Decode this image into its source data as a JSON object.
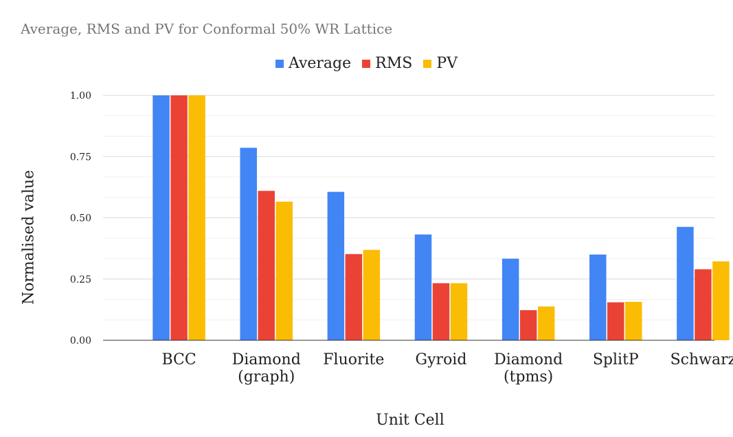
{
  "chart_data": {
    "type": "bar",
    "title": "Average, RMS and PV for Conformal 50% WR Lattice",
    "xlabel": "Unit Cell",
    "ylabel": "Normalised value",
    "categories": [
      [
        "BCC"
      ],
      [
        "Diamond",
        "(graph)"
      ],
      [
        "Fluorite"
      ],
      [
        "Gyroid"
      ],
      [
        "Diamond",
        "(tpms)"
      ],
      [
        "SplitP"
      ],
      [
        "Schwarz"
      ]
    ],
    "series": [
      {
        "name": "Average",
        "color": "#4285f4",
        "values": [
          1.0,
          0.786,
          0.606,
          0.432,
          0.333,
          0.35,
          0.463
        ]
      },
      {
        "name": "RMS",
        "color": "#ea4335",
        "values": [
          1.0,
          0.61,
          0.352,
          0.233,
          0.123,
          0.155,
          0.29
        ]
      },
      {
        "name": "PV",
        "color": "#fbbc04",
        "values": [
          1.0,
          0.566,
          0.369,
          0.233,
          0.138,
          0.157,
          0.322
        ]
      }
    ],
    "yticks": [
      "0.00",
      "0.25",
      "0.50",
      "0.75",
      "1.00"
    ],
    "ylim": [
      0,
      1
    ],
    "legend_position": "top-center",
    "grid": true
  }
}
